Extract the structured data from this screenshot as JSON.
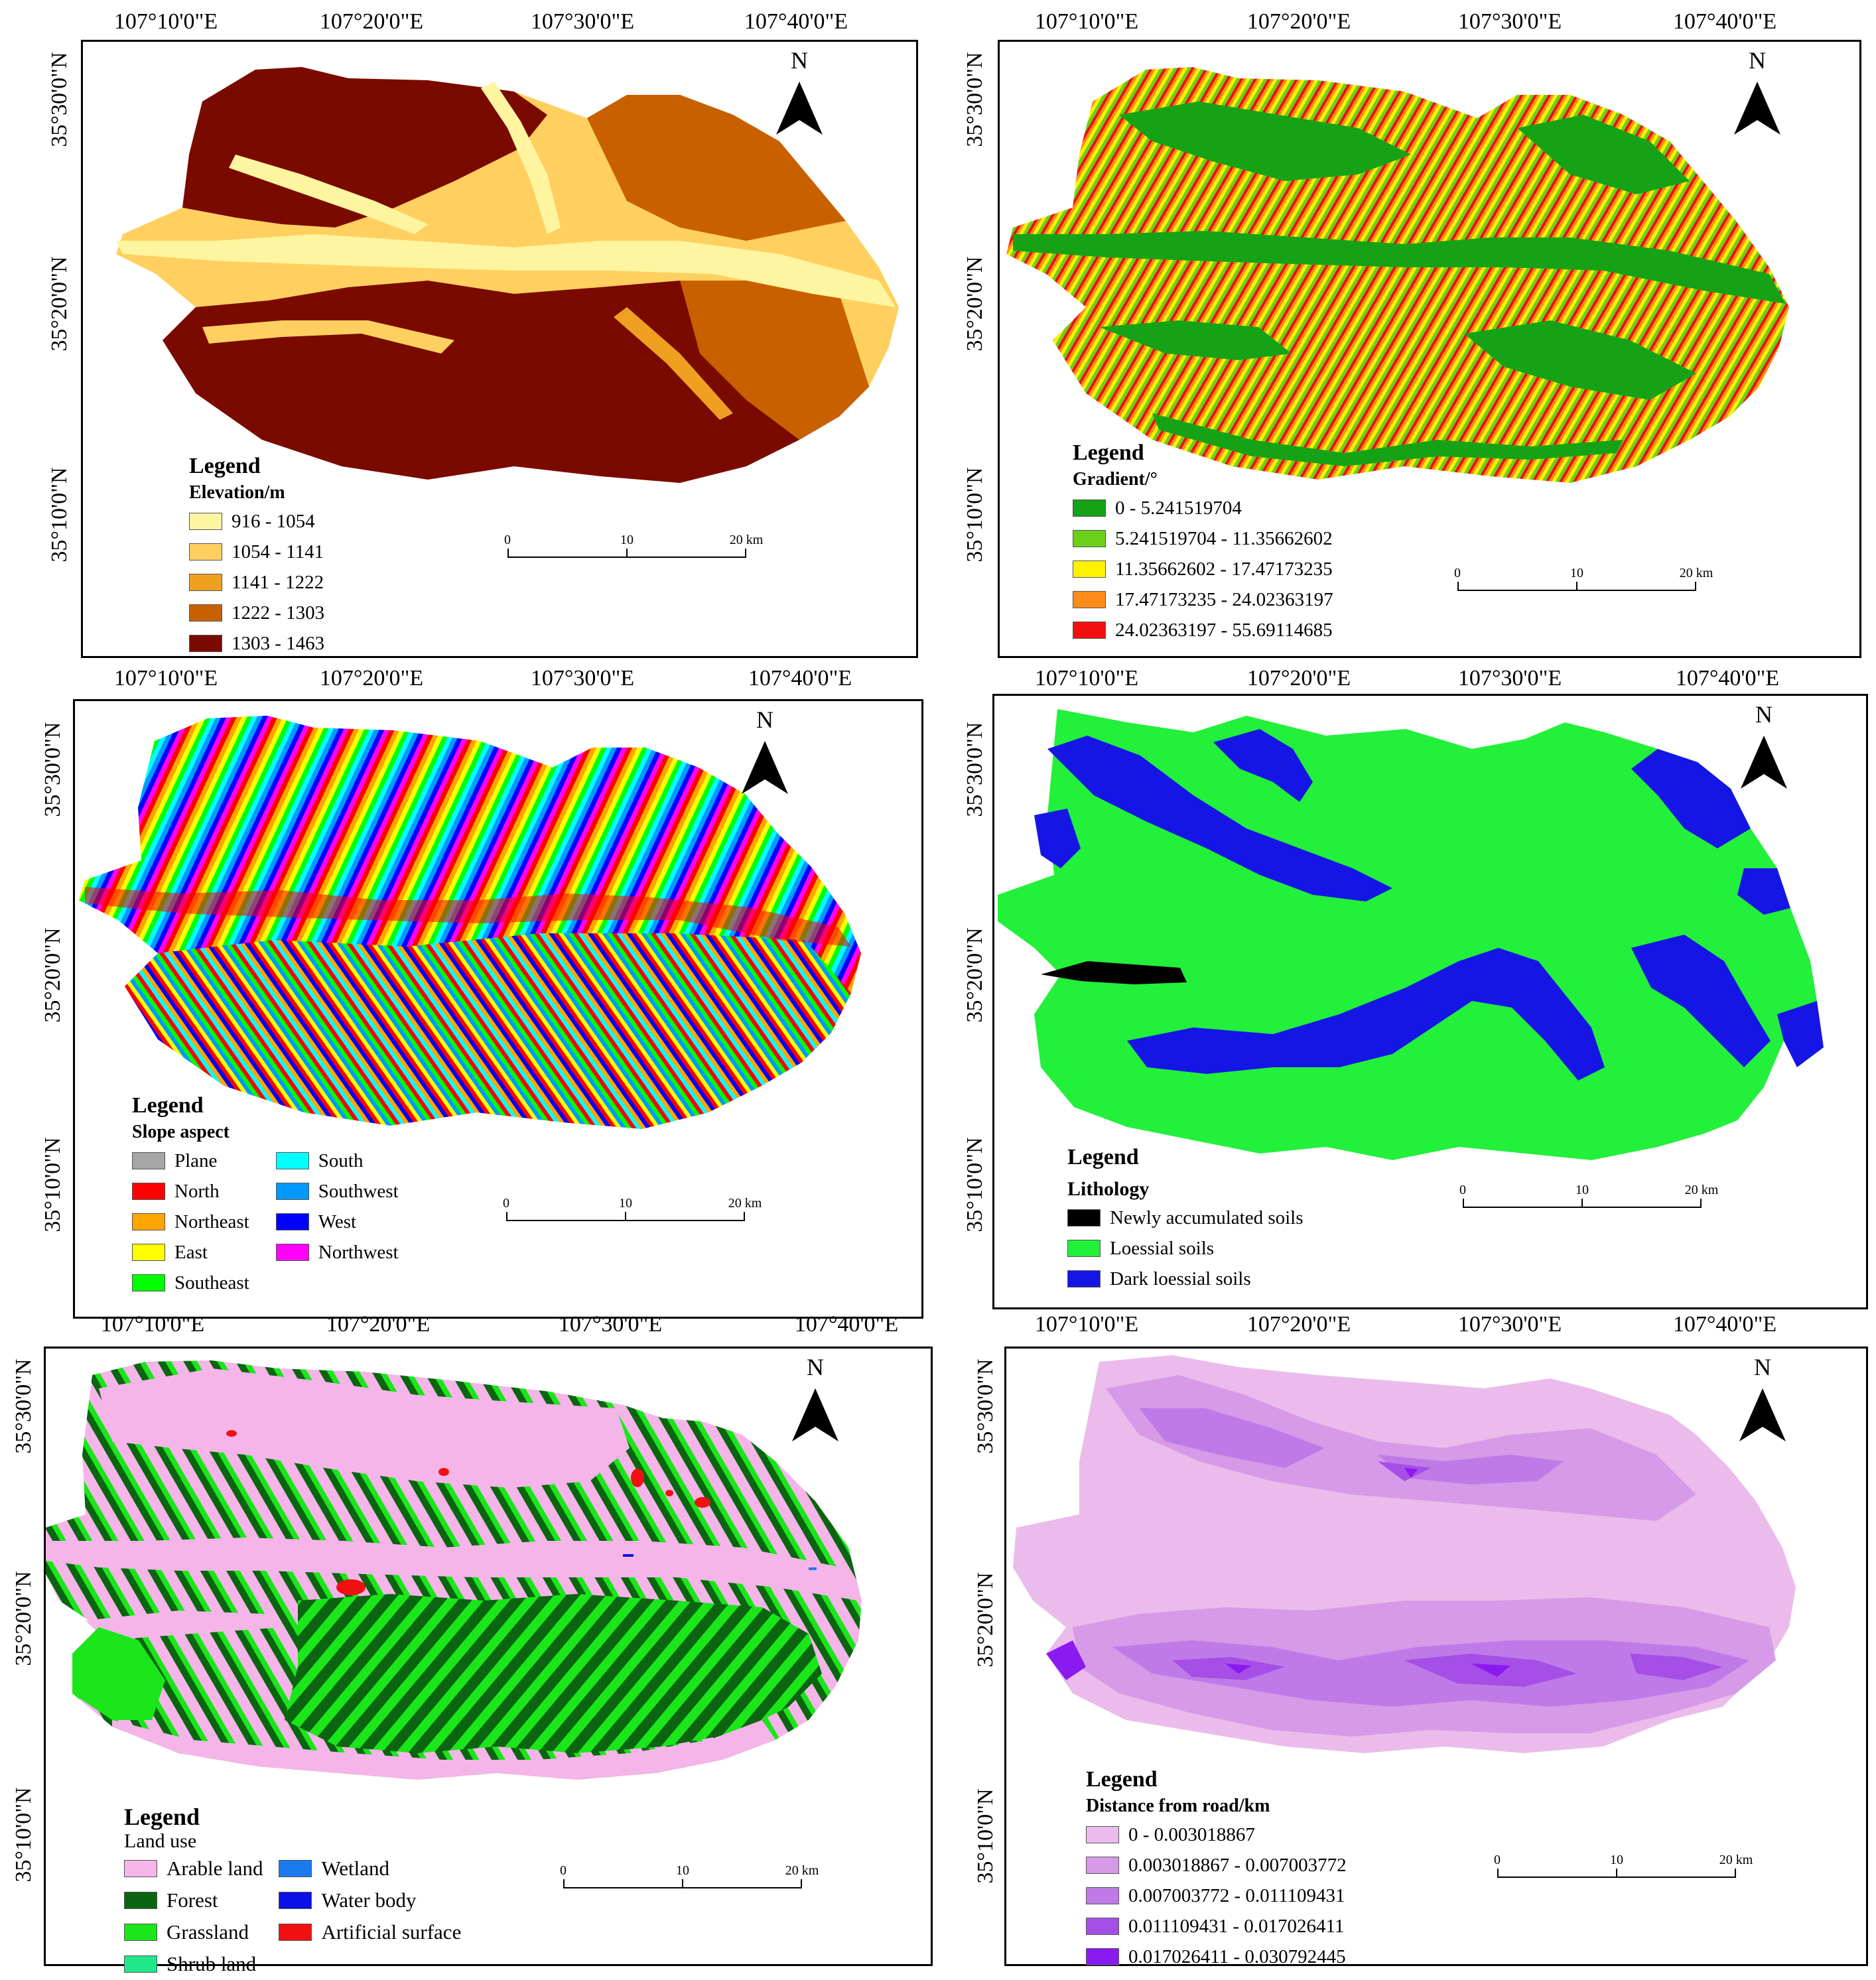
{
  "panels": [
    {
      "id": "elevation",
      "top_labels": [
        "107°10'0\"E",
        "107°20'0\"E",
        "107°30'0\"E",
        "107°40'0\"E"
      ],
      "left_labels": [
        "35°30'0\"N",
        "35°20'0\"N",
        "35°10'0\"N"
      ],
      "north": "N",
      "scale": {
        "l0": "0",
        "l1": "10",
        "l2": "20 km"
      },
      "legend": {
        "title": "Legend",
        "subtitle": "Elevation/m",
        "items": [
          {
            "label": "916 - 1054",
            "color": "#FFF5A0"
          },
          {
            "label": "1054 - 1141",
            "color": "#FFD060"
          },
          {
            "label": "1141 - 1222",
            "color": "#F0A020"
          },
          {
            "label": "1222 - 1303",
            "color": "#C86000"
          },
          {
            "label": "1303 - 1463",
            "color": "#7A0A00"
          }
        ]
      }
    },
    {
      "id": "gradient",
      "top_labels": [
        "107°10'0\"E",
        "107°20'0\"E",
        "107°30'0\"E",
        "107°40'0\"E"
      ],
      "left_labels": [
        "35°30'0\"N",
        "35°20'0\"N",
        "35°10'0\"N"
      ],
      "north": "N",
      "scale": {
        "l0": "0",
        "l1": "10",
        "l2": "20 km"
      },
      "legend": {
        "title": "Legend",
        "subtitle": "Gradient/°",
        "items": [
          {
            "label": "0 - 5.241519704",
            "color": "#16A216"
          },
          {
            "label": "5.241519704 - 11.35662602",
            "color": "#6BD01A"
          },
          {
            "label": "11.35662602 - 17.47173235",
            "color": "#FFF200"
          },
          {
            "label": "17.47173235 - 24.02363197",
            "color": "#FF8C1A"
          },
          {
            "label": "24.02363197 - 55.69114685",
            "color": "#F01010"
          }
        ]
      }
    },
    {
      "id": "aspect",
      "top_labels": [
        "107°10'0\"E",
        "107°20'0\"E",
        "107°30'0\"E",
        "107°40'0\"E"
      ],
      "left_labels": [
        "35°30'0\"N",
        "35°20'0\"N",
        "35°10'0\"N"
      ],
      "north": "N",
      "scale": {
        "l0": "0",
        "l1": "10",
        "l2": "20 km"
      },
      "legend": {
        "title": "Legend",
        "subtitle": "Slope aspect",
        "col1": [
          {
            "label": "Plane",
            "color": "#A6A6A6"
          },
          {
            "label": "North",
            "color": "#FF0000"
          },
          {
            "label": "Northeast",
            "color": "#FFA500"
          },
          {
            "label": "East",
            "color": "#FFFF00"
          },
          {
            "label": "Southeast",
            "color": "#00FF00"
          }
        ],
        "col2": [
          {
            "label": "South",
            "color": "#00FFFF"
          },
          {
            "label": "Southwest",
            "color": "#0099FF"
          },
          {
            "label": "West",
            "color": "#0000FF"
          },
          {
            "label": "Northwest",
            "color": "#FF00FF"
          }
        ]
      }
    },
    {
      "id": "lithology",
      "top_labels": [
        "107°10'0\"E",
        "107°20'0\"E",
        "107°30'0\"E",
        "107°40'0\"E"
      ],
      "left_labels": [
        "35°30'0\"N",
        "35°20'0\"N",
        "35°10'0\"N"
      ],
      "north": "N",
      "scale": {
        "l0": "0",
        "l1": "10",
        "l2": "20 km"
      },
      "legend": {
        "title": "Legend",
        "subtitle": "Lithology",
        "items": [
          {
            "label": "Newly accumulated soils",
            "color": "#000000"
          },
          {
            "label": "Loessial soils",
            "color": "#22F03A"
          },
          {
            "label": "Dark loessial soils",
            "color": "#1515E6"
          }
        ]
      }
    },
    {
      "id": "landuse",
      "top_labels": [
        "107°10'0\"E",
        "107°20'0\"E",
        "107°30'0\"E",
        "107°40'0\"E"
      ],
      "left_labels": [
        "35°30'0\"N",
        "35°20'0\"N",
        "35°10'0\"N"
      ],
      "north": "N",
      "scale": {
        "l0": "0",
        "l1": "10",
        "l2": "20 km"
      },
      "legend": {
        "title": "Legend",
        "subtitle": "Land use",
        "col1": [
          {
            "label": "Arable land",
            "color": "#F5B5E8"
          },
          {
            "label": "Forest",
            "color": "#0A6410"
          },
          {
            "label": "Grassland",
            "color": "#1AE61A"
          },
          {
            "label": "Shrub land",
            "color": "#22E68A"
          }
        ],
        "col2": [
          {
            "label": "Wetland",
            "color": "#1A7AF0"
          },
          {
            "label": "Water body",
            "color": "#0A10E6"
          },
          {
            "label": "Artificial surface",
            "color": "#F01010"
          }
        ]
      }
    },
    {
      "id": "road",
      "top_labels": [
        "107°10'0\"E",
        "107°20'0\"E",
        "107°30'0\"E",
        "107°40'0\"E"
      ],
      "left_labels": [
        "35°30'0\"N",
        "35°20'0\"N",
        "35°10'0\"N"
      ],
      "north": "N",
      "scale": {
        "l0": "0",
        "l1": "10",
        "l2": "20 km"
      },
      "legend": {
        "title": "Legend",
        "subtitle": "Distance from road/km",
        "items": [
          {
            "label": "0 - 0.003018867",
            "color": "#EBBCEB"
          },
          {
            "label": "0.003018867 - 0.007003772",
            "color": "#D69AE8"
          },
          {
            "label": "0.007003772 - 0.011109431",
            "color": "#C07AE8"
          },
          {
            "label": "0.011109431 - 0.017026411",
            "color": "#A54FE6"
          },
          {
            "label": "0.017026411 - 0.030792445",
            "color": "#8A1AF0"
          }
        ]
      }
    }
  ]
}
